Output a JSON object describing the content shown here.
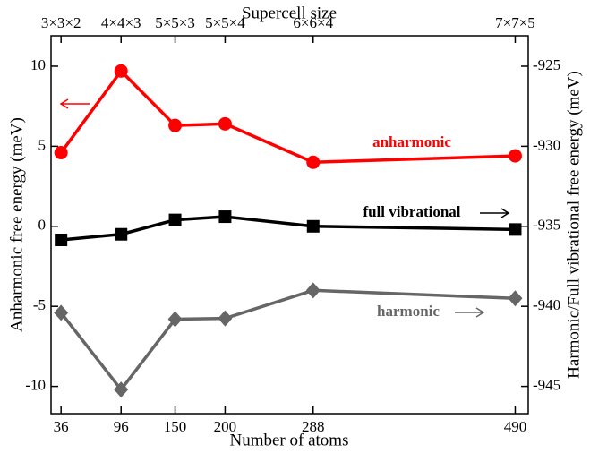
{
  "chart_data": {
    "type": "line",
    "title": "Supercell size",
    "x_label": "Number of atoms",
    "y_label": "Anharmonic free energy (meV)",
    "y2_label": "Harmonic/Full vibrational free energy (meV)",
    "x": [
      36,
      96,
      150,
      200,
      288,
      490
    ],
    "xlim": [
      26,
      503
    ],
    "xticks": [
      36,
      96,
      150,
      200,
      288,
      490
    ],
    "x2ticks": [
      {
        "value": 36,
        "label": "3×3×2"
      },
      {
        "value": 96,
        "label": "4×4×3"
      },
      {
        "value": 150,
        "label": "5×5×3"
      },
      {
        "value": 200,
        "label": "5×5×4"
      },
      {
        "value": 288,
        "label": "6×6×4"
      },
      {
        "value": 490,
        "label": "7×7×5"
      }
    ],
    "ylim": [
      -11.7,
      11.9
    ],
    "yticks": [
      -10,
      -5,
      0,
      5,
      10
    ],
    "y2lim": [
      -946.7,
      -923.1
    ],
    "y2ticks": [
      -945,
      -940,
      -935,
      -930,
      -925
    ],
    "series": [
      {
        "name": "anharmonic",
        "color": "#ff0000",
        "marker": "circle",
        "values": [
          4.6,
          9.7,
          6.3,
          6.4,
          4.0,
          4.4
        ]
      },
      {
        "name": "full vibrational",
        "color": "#000000",
        "marker": "square",
        "axis": "y2",
        "values": [
          -935.85,
          -935.5,
          -934.6,
          -934.4,
          -935.0,
          -935.2
        ]
      },
      {
        "name": "harmonic",
        "color": "#666666",
        "marker": "diamond",
        "axis": "y2",
        "values": [
          -940.4,
          -945.2,
          -940.8,
          -940.75,
          -939.0,
          -939.5
        ]
      }
    ]
  }
}
